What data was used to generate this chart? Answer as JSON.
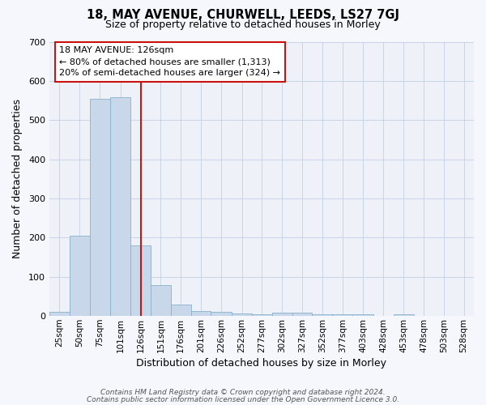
{
  "title": "18, MAY AVENUE, CHURWELL, LEEDS, LS27 7GJ",
  "subtitle": "Size of property relative to detached houses in Morley",
  "xlabel": "Distribution of detached houses by size in Morley",
  "ylabel": "Number of detached properties",
  "bar_color": "#c8d8ea",
  "bar_edge_color": "#8ab0cc",
  "grid_color": "#c8d4e8",
  "bg_color": "#eef2f8",
  "red_line_color": "#cc1111",
  "annotation_line1": "18 MAY AVENUE: 126sqm",
  "annotation_line2": "← 80% of detached houses are smaller (1,313)",
  "annotation_line3": "20% of semi-detached houses are larger (324) →",
  "annotation_box_color": "#ffffff",
  "annotation_box_edge": "#cc1111",
  "footer_line1": "Contains HM Land Registry data © Crown copyright and database right 2024.",
  "footer_line2": "Contains public sector information licensed under the Open Government Licence 3.0.",
  "categories": [
    "25sqm",
    "50sqm",
    "75sqm",
    "101sqm",
    "126sqm",
    "151sqm",
    "176sqm",
    "201sqm",
    "226sqm",
    "252sqm",
    "277sqm",
    "302sqm",
    "327sqm",
    "352sqm",
    "377sqm",
    "403sqm",
    "428sqm",
    "453sqm",
    "478sqm",
    "503sqm",
    "528sqm"
  ],
  "values": [
    10,
    205,
    555,
    558,
    180,
    78,
    30,
    12,
    10,
    7,
    5,
    8,
    8,
    5,
    4,
    5,
    0,
    5,
    0,
    0,
    0
  ],
  "bar_left_edges": [
    12.5,
    37.5,
    62.5,
    88.5,
    113.5,
    138.5,
    163.5,
    188.5,
    213.5,
    239.5,
    264.5,
    289.5,
    314.5,
    339.5,
    364.5,
    389.5,
    415.5,
    440.5,
    465.5,
    490.5,
    515.5
  ],
  "bar_right_edges": [
    37.5,
    62.5,
    88.5,
    113.5,
    138.5,
    163.5,
    188.5,
    213.5,
    239.5,
    264.5,
    289.5,
    314.5,
    339.5,
    364.5,
    389.5,
    415.5,
    440.5,
    465.5,
    490.5,
    515.5,
    540.5
  ],
  "xlim": [
    12.5,
    540.5
  ],
  "ylim": [
    0,
    700
  ],
  "yticks": [
    0,
    100,
    200,
    300,
    400,
    500,
    600,
    700
  ],
  "red_line_x": 126
}
